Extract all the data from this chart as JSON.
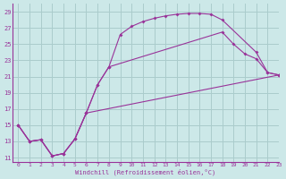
{
  "xlabel": "Windchill (Refroidissement éolien,°C)",
  "bg_color": "#cce8e8",
  "line_color": "#993399",
  "grid_color": "#aacccc",
  "xlim": [
    -0.5,
    23
  ],
  "ylim": [
    10.5,
    30
  ],
  "yticks": [
    11,
    13,
    15,
    17,
    19,
    21,
    23,
    25,
    27,
    29
  ],
  "xticks": [
    0,
    1,
    2,
    3,
    4,
    5,
    6,
    7,
    8,
    9,
    10,
    11,
    12,
    13,
    14,
    15,
    16,
    17,
    18,
    19,
    20,
    21,
    22,
    23
  ],
  "series1_x": [
    0,
    1,
    2,
    3,
    4,
    5,
    6,
    7,
    8,
    9,
    10,
    11,
    12,
    13,
    14,
    15,
    16,
    17,
    18,
    21,
    22,
    23
  ],
  "series1_y": [
    15.0,
    13.0,
    13.2,
    11.2,
    11.5,
    13.3,
    16.5,
    20.0,
    22.2,
    26.2,
    27.2,
    27.8,
    28.2,
    28.5,
    28.7,
    28.8,
    28.8,
    28.7,
    28.0,
    24.0,
    21.5,
    21.2
  ],
  "series2_x": [
    0,
    1,
    2,
    3,
    4,
    5,
    6,
    7,
    8,
    18,
    19,
    20,
    21,
    22,
    23
  ],
  "series2_y": [
    15.0,
    13.0,
    13.2,
    11.2,
    11.5,
    13.3,
    16.5,
    20.0,
    22.2,
    26.5,
    25.0,
    23.8,
    23.2,
    21.5,
    21.2
  ],
  "series3_x": [
    0,
    1,
    2,
    3,
    4,
    5,
    6,
    23
  ],
  "series3_y": [
    15.0,
    13.0,
    13.2,
    11.2,
    11.5,
    13.3,
    16.5,
    21.2
  ]
}
